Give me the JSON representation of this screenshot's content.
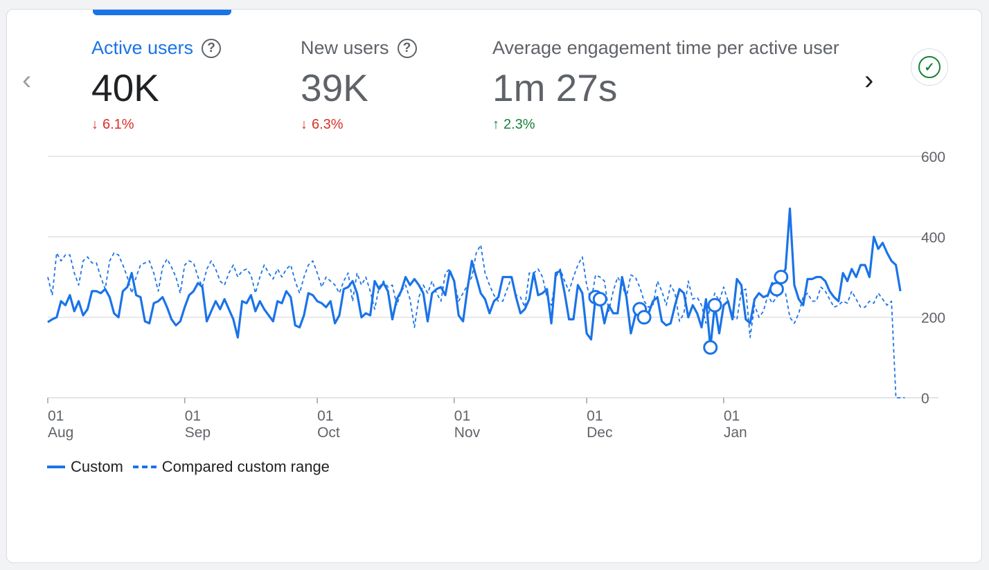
{
  "metrics": [
    {
      "label": "Active users",
      "value": "40K",
      "delta": "6.1%",
      "direction": "down",
      "help_icon": "help-icon"
    },
    {
      "label": "New users",
      "value": "39K",
      "delta": "6.3%",
      "direction": "down",
      "help_icon": "help-icon"
    },
    {
      "label": "Average engagement time per active user",
      "value": "1m 27s",
      "delta": "2.3%",
      "direction": "up"
    }
  ],
  "nav": {
    "prev_icon": "chevron-left-icon",
    "prev_glyph": "‹",
    "next_icon": "chevron-right-icon",
    "next_glyph": "›"
  },
  "check_icon": "check-circle-icon",
  "arrows": {
    "down": "↓",
    "up": "↑"
  },
  "colors": {
    "accent": "#1a73e8",
    "down": "#d93025",
    "up": "#188038",
    "grid": "#e0e0e0"
  },
  "legend": {
    "primary": "Custom",
    "secondary": "Compared custom range"
  },
  "chart_data": {
    "type": "line",
    "ylim": [
      0,
      600
    ],
    "yticks": [
      "600",
      "400",
      "200",
      "0"
    ],
    "yticks_values": [
      600,
      400,
      200,
      0
    ],
    "xticks": [
      {
        "day": "01",
        "month": "Aug",
        "index": 0
      },
      {
        "day": "01",
        "month": "Sep",
        "index": 31
      },
      {
        "day": "01",
        "month": "Oct",
        "index": 61
      },
      {
        "day": "01",
        "month": "Nov",
        "index": 92
      },
      {
        "day": "01",
        "month": "Dec",
        "index": 122
      },
      {
        "day": "01",
        "month": "Jan",
        "index": 153
      }
    ],
    "series": [
      {
        "name": "Custom",
        "style": "solid",
        "values": [
          188,
          195,
          200,
          240,
          230,
          255,
          215,
          240,
          205,
          220,
          265,
          265,
          260,
          270,
          250,
          210,
          200,
          265,
          275,
          310,
          255,
          250,
          190,
          185,
          235,
          240,
          250,
          225,
          195,
          180,
          190,
          225,
          255,
          265,
          285,
          275,
          190,
          215,
          240,
          220,
          245,
          220,
          195,
          150,
          240,
          235,
          255,
          215,
          240,
          220,
          205,
          190,
          240,
          235,
          265,
          250,
          180,
          175,
          205,
          260,
          255,
          240,
          235,
          225,
          240,
          185,
          205,
          270,
          275,
          290,
          260,
          200,
          210,
          205,
          290,
          270,
          285,
          265,
          195,
          245,
          265,
          300,
          280,
          295,
          280,
          260,
          190,
          260,
          270,
          275,
          255,
          315,
          290,
          205,
          190,
          270,
          340,
          300,
          260,
          245,
          210,
          240,
          250,
          300,
          300,
          300,
          250,
          210,
          220,
          245,
          310,
          255,
          260,
          270,
          185,
          310,
          315,
          260,
          195,
          195,
          280,
          260,
          160,
          145,
          250,
          245,
          185,
          230,
          210,
          210,
          300,
          250,
          160,
          205,
          220,
          200,
          210,
          240,
          250,
          190,
          180,
          185,
          230,
          270,
          260,
          200,
          230,
          210,
          175,
          245,
          125,
          230,
          160,
          230,
          240,
          195,
          295,
          280,
          195,
          185,
          245,
          260,
          250,
          255,
          285,
          270,
          300,
          320,
          470,
          280,
          245,
          230,
          295,
          295,
          300,
          300,
          290,
          265,
          250,
          240,
          310,
          290,
          320,
          300,
          330,
          330,
          300,
          400,
          370,
          385,
          360,
          340,
          330,
          265
        ]
      },
      {
        "name": "Compared custom range",
        "style": "dashed",
        "values": [
          300,
          255,
          360,
          340,
          355,
          355,
          310,
          280,
          340,
          350,
          335,
          335,
          300,
          270,
          340,
          360,
          355,
          330,
          300,
          260,
          300,
          330,
          335,
          340,
          310,
          265,
          325,
          345,
          325,
          300,
          260,
          330,
          340,
          335,
          300,
          275,
          320,
          340,
          320,
          290,
          280,
          310,
          330,
          300,
          315,
          320,
          305,
          260,
          300,
          330,
          310,
          295,
          320,
          300,
          320,
          330,
          290,
          260,
          300,
          330,
          340,
          310,
          275,
          300,
          290,
          280,
          260,
          290,
          310,
          240,
          310,
          280,
          300,
          265,
          220,
          275,
          290,
          275,
          280,
          230,
          265,
          280,
          245,
          175,
          250,
          280,
          260,
          290,
          260,
          240,
          310,
          320,
          290,
          240,
          260,
          280,
          300,
          360,
          380,
          310,
          280,
          255,
          240,
          240,
          270,
          300,
          255,
          250,
          225,
          310,
          310,
          320,
          300,
          250,
          230,
          300,
          320,
          290,
          265,
          300,
          330,
          350,
          280,
          240,
          305,
          300,
          290,
          215,
          265,
          300,
          280,
          250,
          305,
          300,
          275,
          240,
          225,
          230,
          290,
          265,
          230,
          280,
          260,
          190,
          210,
          290,
          245,
          250,
          230,
          185,
          225,
          260,
          240,
          275,
          240,
          205,
          195,
          265,
          270,
          150,
          230,
          200,
          215,
          255,
          235,
          250,
          265,
          260,
          200,
          185,
          210,
          250,
          260,
          240,
          240,
          275,
          265,
          245,
          225,
          230,
          240,
          235,
          265,
          245,
          225,
          225,
          240,
          235,
          260,
          245,
          230,
          240,
          0,
          0,
          0
        ]
      }
    ],
    "highlights": [
      {
        "series": 0,
        "indexes": [
          124,
          125,
          134,
          135,
          150,
          151,
          165,
          166
        ]
      }
    ]
  }
}
